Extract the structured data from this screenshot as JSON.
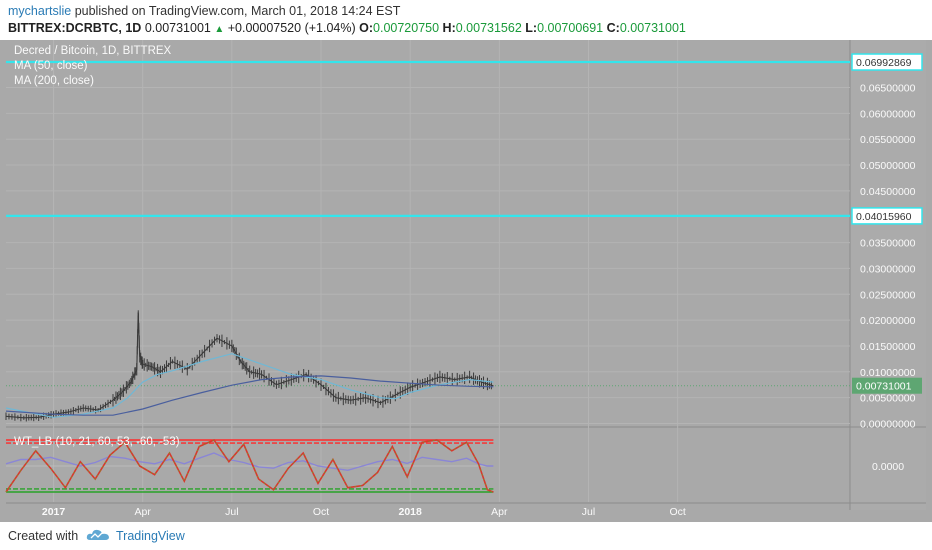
{
  "header": {
    "author": "mychartslie",
    "published_text": "published on TradingView.com, March 01, 2018 14:24 EST",
    "symbol": "BITTREX:DCRBTC, 1D",
    "last": "0.00731001",
    "change_arrow": "▲",
    "change": "+0.00007520 (+1.04%)",
    "o_label": "O:",
    "o_value": "0.00720750",
    "h_label": "H:",
    "h_value": "0.00731562",
    "l_label": "L:",
    "l_value": "0.00700691",
    "c_label": "C:",
    "c_value": "0.00731001"
  },
  "legend": {
    "title": "Decred / Bitcoin, 1D, BITTREX",
    "ma50": "MA (50, close)",
    "ma200": "MA (200, close)",
    "indicator": "WT_LB (10, 21, 60, 53, -60, -53)"
  },
  "footer": {
    "created_with": "Created with",
    "brand": "TradingView"
  },
  "colors": {
    "background": "#a9a9a9",
    "hline": "#33e5ec",
    "candle": "#3a3a3a",
    "ma50": "#6fb8d6",
    "ma200": "#4a5f9e",
    "wt_fast": "#d63a2e",
    "wt_dot": "#6aa52a",
    "wt_signal": "#8a86d6",
    "ob_line": "#ff2a2a",
    "os_line": "#29a329",
    "last_price_label": "#5ea672"
  },
  "chart_data": [
    {
      "type": "line",
      "title": "Decred / Bitcoin, 1D, BITTREX",
      "price_axis_ticks": [
        "0.06500000",
        "0.06000000",
        "0.05500000",
        "0.05000000",
        "0.04500000",
        "0.03500000",
        "0.03000000",
        "0.02500000",
        "0.02000000",
        "0.01500000",
        "0.01000000",
        "0.00500000",
        "0.00000000"
      ],
      "tick_values": [
        0.065,
        0.06,
        0.055,
        0.05,
        0.045,
        0.035,
        0.03,
        0.025,
        0.02,
        0.015,
        0.01,
        0.005,
        0.0
      ],
      "ylim": [
        0.0,
        0.07
      ],
      "horizontal_lines": [
        {
          "value": 0.06992869,
          "label": "0.06992869"
        },
        {
          "value": 0.0401596,
          "label": "0.04015960"
        }
      ],
      "last_price": {
        "value": 0.00731001,
        "label": "0.00731001"
      },
      "time_axis_labels": [
        "2017",
        "Apr",
        "Jul",
        "Oct",
        "2018",
        "Apr",
        "Jul",
        "Oct"
      ],
      "time_axis_months": [
        0,
        3,
        6,
        9,
        12,
        15,
        18,
        21
      ],
      "xlim_months": [
        -1.6,
        26.8
      ],
      "series": [
        {
          "name": "close",
          "x_months": [
            -1.6,
            -1.0,
            -0.5,
            0.0,
            0.5,
            1.0,
            1.5,
            2.0,
            2.3,
            2.6,
            2.8,
            2.85,
            2.9,
            3.0,
            3.3,
            3.6,
            4.0,
            4.5,
            5.0,
            5.5,
            6.0,
            6.3,
            6.6,
            7.0,
            7.5,
            8.0,
            8.5,
            9.0,
            9.5,
            10.0,
            10.5,
            11.0,
            11.5,
            12.0,
            12.5,
            13.0,
            13.5,
            14.0,
            14.4,
            14.8
          ],
          "values": [
            0.0014,
            0.0011,
            0.0012,
            0.0018,
            0.0022,
            0.003,
            0.0026,
            0.0045,
            0.006,
            0.008,
            0.0105,
            0.0215,
            0.013,
            0.0115,
            0.011,
            0.01,
            0.012,
            0.0105,
            0.0135,
            0.0165,
            0.015,
            0.012,
            0.01,
            0.0095,
            0.0075,
            0.0085,
            0.0095,
            0.0075,
            0.005,
            0.0045,
            0.005,
            0.004,
            0.0055,
            0.007,
            0.008,
            0.009,
            0.0085,
            0.009,
            0.008,
            0.0073
          ]
        },
        {
          "name": "MA (50, close)",
          "x_months": [
            -1.6,
            0.0,
            1.0,
            2.0,
            2.5,
            3.0,
            3.5,
            4.0,
            5.0,
            6.0,
            7.0,
            8.0,
            9.0,
            10.0,
            11.0,
            11.5,
            12.0,
            13.0,
            14.0,
            14.8
          ],
          "values": [
            0.003,
            0.0012,
            0.0018,
            0.003,
            0.005,
            0.008,
            0.0095,
            0.0102,
            0.012,
            0.0135,
            0.0115,
            0.0095,
            0.0085,
            0.0065,
            0.005,
            0.0048,
            0.006,
            0.0075,
            0.0085,
            0.008
          ]
        },
        {
          "name": "MA (200, close)",
          "x_months": [
            -1.6,
            0.0,
            1.0,
            2.0,
            3.0,
            4.0,
            5.0,
            6.0,
            7.0,
            8.0,
            9.0,
            10.0,
            11.0,
            12.0,
            13.0,
            14.0,
            14.8
          ],
          "values": [
            0.0024,
            0.0018,
            0.0016,
            0.0016,
            0.0028,
            0.0045,
            0.006,
            0.0074,
            0.0085,
            0.009,
            0.0092,
            0.0088,
            0.0082,
            0.0078,
            0.0074,
            0.0072,
            0.0071
          ]
        }
      ]
    },
    {
      "type": "line",
      "title": "WT_LB (10, 21, 60, 53, -60, -53)",
      "axis_ticks": [
        "0.0000"
      ],
      "tick_values": [
        0
      ],
      "ylim": [
        -70,
        70
      ],
      "reference_lines": [
        60,
        53,
        -53,
        -60
      ],
      "series": [
        {
          "name": "wt1",
          "x_months": [
            -1.6,
            -1.1,
            -0.6,
            -0.1,
            0.4,
            0.9,
            1.4,
            1.9,
            2.4,
            2.9,
            3.4,
            3.9,
            4.4,
            4.9,
            5.4,
            5.9,
            6.4,
            6.9,
            7.4,
            7.9,
            8.4,
            8.9,
            9.4,
            9.9,
            10.4,
            10.9,
            11.4,
            11.9,
            12.4,
            12.9,
            13.4,
            13.9,
            14.3,
            14.6,
            14.8
          ],
          "values": [
            -60,
            -10,
            35,
            -5,
            -50,
            10,
            -30,
            25,
            55,
            0,
            -20,
            30,
            -35,
            45,
            60,
            10,
            50,
            -30,
            -55,
            -5,
            30,
            -40,
            15,
            -50,
            -45,
            -15,
            45,
            -25,
            55,
            60,
            35,
            55,
            5,
            -55,
            -60
          ]
        },
        {
          "name": "wt2",
          "x_months": [
            -1.6,
            -1.1,
            -0.6,
            -0.1,
            0.4,
            0.9,
            1.4,
            1.9,
            2.4,
            2.9,
            3.4,
            3.9,
            4.4,
            4.9,
            5.4,
            5.9,
            6.4,
            6.9,
            7.4,
            7.9,
            8.4,
            8.9,
            9.4,
            9.9,
            10.4,
            10.9,
            11.4,
            11.9,
            12.4,
            12.9,
            13.4,
            13.9,
            14.3,
            14.6,
            14.8
          ],
          "values": [
            5,
            15,
            15,
            20,
            10,
            0,
            8,
            22,
            18,
            10,
            5,
            15,
            5,
            18,
            30,
            15,
            8,
            -2,
            -5,
            8,
            12,
            0,
            -5,
            -10,
            0,
            10,
            15,
            6,
            20,
            15,
            10,
            18,
            5,
            0,
            0
          ]
        }
      ]
    }
  ]
}
